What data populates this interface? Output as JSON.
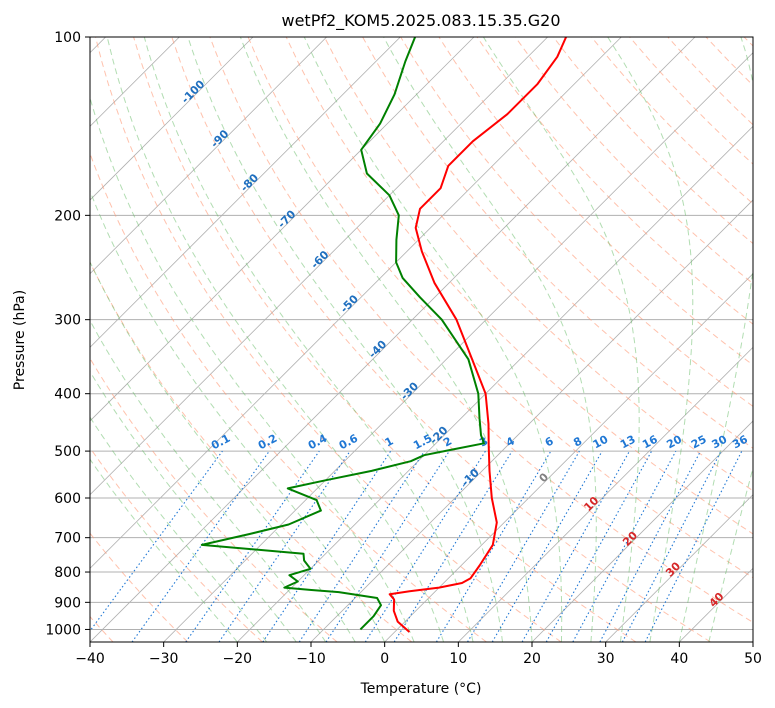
{
  "chart_data": {
    "type": "line",
    "title": "wetPf2_KOM5.2025.083.15.35.G20",
    "xlabel": "Temperature (°C)",
    "ylabel": "Pressure (hPa)",
    "xlim": [
      -40,
      50
    ],
    "ylim": [
      1050,
      100
    ],
    "y_scale": "log",
    "x_ticks": [
      -40,
      -30,
      -20,
      -10,
      0,
      10,
      20,
      30,
      40,
      50
    ],
    "y_ticks": [
      100,
      200,
      300,
      400,
      500,
      600,
      700,
      800,
      900,
      1000
    ],
    "grid": true,
    "skew": "skew-T",
    "series": [
      {
        "color": "#ff0000",
        "points": [
          {
            "p": 1010,
            "t": 2.0
          },
          {
            "p": 970,
            "t": -1.0
          },
          {
            "p": 930,
            "t": -3.0
          },
          {
            "p": 890,
            "t": -4.5
          },
          {
            "p": 872,
            "t": -5.8
          },
          {
            "p": 862,
            "t": -3.5
          },
          {
            "p": 850,
            "t": 0.0
          },
          {
            "p": 835,
            "t": 2.5
          },
          {
            "p": 820,
            "t": 3.0
          },
          {
            "p": 780,
            "t": 2.5
          },
          {
            "p": 720,
            "t": 1.5
          },
          {
            "p": 660,
            "t": -1.0
          },
          {
            "p": 600,
            "t": -5.0
          },
          {
            "p": 540,
            "t": -9.0
          },
          {
            "p": 490,
            "t": -12.5
          },
          {
            "p": 450,
            "t": -15.5
          },
          {
            "p": 400,
            "t": -20.0
          },
          {
            "p": 350,
            "t": -26.5
          },
          {
            "p": 300,
            "t": -34.0
          },
          {
            "p": 260,
            "t": -42.0
          },
          {
            "p": 230,
            "t": -48.0
          },
          {
            "p": 210,
            "t": -52.0
          },
          {
            "p": 195,
            "t": -54.0
          },
          {
            "p": 180,
            "t": -54.0
          },
          {
            "p": 165,
            "t": -56.0
          },
          {
            "p": 150,
            "t": -56.0
          },
          {
            "p": 135,
            "t": -55.0
          },
          {
            "p": 120,
            "t": -55.0
          },
          {
            "p": 108,
            "t": -56.0
          },
          {
            "p": 100,
            "t": -57.5
          }
        ]
      },
      {
        "color": "#008000",
        "points": [
          {
            "p": 1000,
            "t": -5.0
          },
          {
            "p": 950,
            "t": -5.0
          },
          {
            "p": 910,
            "t": -5.5
          },
          {
            "p": 885,
            "t": -7.0
          },
          {
            "p": 865,
            "t": -13.0
          },
          {
            "p": 858,
            "t": -17.0
          },
          {
            "p": 850,
            "t": -21.0
          },
          {
            "p": 830,
            "t": -20.0
          },
          {
            "p": 810,
            "t": -22.0
          },
          {
            "p": 790,
            "t": -20.0
          },
          {
            "p": 765,
            "t": -22.0
          },
          {
            "p": 745,
            "t": -23.0
          },
          {
            "p": 720,
            "t": -38.0
          },
          {
            "p": 690,
            "t": -33.0
          },
          {
            "p": 665,
            "t": -29.0
          },
          {
            "p": 630,
            "t": -26.5
          },
          {
            "p": 605,
            "t": -28.5
          },
          {
            "p": 578,
            "t": -34.0
          },
          {
            "p": 560,
            "t": -30.0
          },
          {
            "p": 540,
            "t": -25.0
          },
          {
            "p": 520,
            "t": -21.0
          },
          {
            "p": 508,
            "t": -20.0
          },
          {
            "p": 497,
            "t": -17.0
          },
          {
            "p": 485,
            "t": -13.5
          },
          {
            "p": 470,
            "t": -15.0
          },
          {
            "p": 440,
            "t": -17.5
          },
          {
            "p": 400,
            "t": -21.0
          },
          {
            "p": 350,
            "t": -27.0
          },
          {
            "p": 300,
            "t": -36.0
          },
          {
            "p": 275,
            "t": -42.0
          },
          {
            "p": 255,
            "t": -47.0
          },
          {
            "p": 240,
            "t": -50.0
          },
          {
            "p": 220,
            "t": -53.0
          },
          {
            "p": 200,
            "t": -56.0
          },
          {
            "p": 185,
            "t": -60.0
          },
          {
            "p": 170,
            "t": -66.0
          },
          {
            "p": 155,
            "t": -70.0
          },
          {
            "p": 140,
            "t": -71.0
          },
          {
            "p": 125,
            "t": -73.0
          },
          {
            "p": 110,
            "t": -76.0
          },
          {
            "p": 100,
            "t": -78.0
          }
        ]
      }
    ],
    "dry_adiabat_labels": [
      "-100",
      "-90",
      "-80",
      "-70",
      "-60",
      "-50",
      "-40",
      "-30",
      "-20",
      "-10"
    ],
    "moist_adiabat_labels": [
      "0",
      "10",
      "20",
      "30",
      "40"
    ],
    "mixing_ratio_labels": [
      "0.1",
      "0.2",
      "0.4",
      "0.6",
      "1",
      "1.5",
      "2",
      "3",
      "4",
      "6",
      "8",
      "10",
      "13",
      "16",
      "20",
      "25",
      "30",
      "36"
    ],
    "colors": {
      "temperature": "#ff0000",
      "dewpoint": "#008000",
      "isotherm": "#b0b0b0",
      "dry_adiabat": "#ff9977",
      "moist_adiabat": "#66bb66",
      "mixing_ratio": "#1f77d4",
      "label_blue": "#1f6fbf",
      "label_red": "#d62728",
      "label_gray": "#808080"
    }
  }
}
